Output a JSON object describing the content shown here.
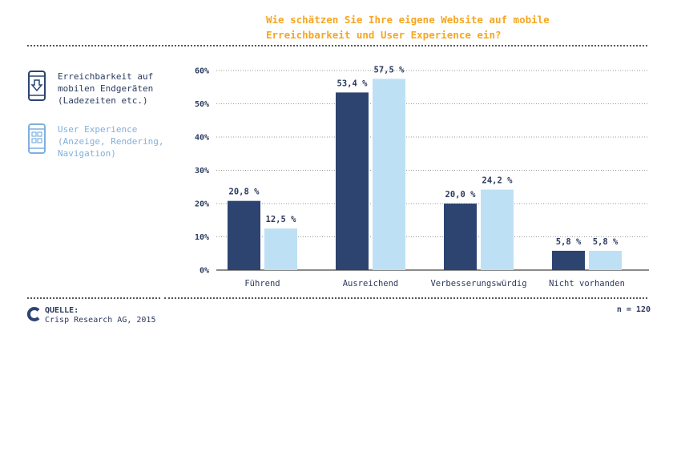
{
  "chart_data": {
    "type": "bar",
    "title_lines": [
      "Wie schätzen Sie Ihre eigene Website auf mobile",
      "Erreichbarkeit und User Experience ein?"
    ],
    "categories": [
      "Führend",
      "Ausreichend",
      "Verbesserungswürdig",
      "Nicht vorhanden"
    ],
    "series": [
      {
        "name": "Erreichbarkeit auf\nmobilen Endgeräten\n(Ladezeiten etc.)",
        "color": "#2d4471",
        "values": [
          20.8,
          53.4,
          20.0,
          5.8
        ],
        "labels": [
          "20,8 %",
          "53,4 %",
          "20,0 %",
          "5,8 %"
        ]
      },
      {
        "name": "User Experience\n(Anzeige, Rendering,\nNavigation)",
        "color": "#bee0f5",
        "values": [
          12.5,
          57.5,
          24.2,
          5.8
        ],
        "labels": [
          "12,5 %",
          "57,5 %",
          "24,2 %",
          "5,8 %"
        ]
      }
    ],
    "ylim": [
      0,
      60
    ],
    "yticks": [
      0,
      10,
      20,
      30,
      40,
      50,
      60
    ],
    "ytick_labels": [
      "0%",
      "10%",
      "20%",
      "30%",
      "40%",
      "50%",
      "60%"
    ],
    "grid": true,
    "legend_position": "left"
  },
  "legend_icons": [
    "phone-download-icon",
    "phone-grid-icon"
  ],
  "source": {
    "label": "QUELLE:",
    "text": "Crisp Research AG, 2015"
  },
  "sample_size": "n = 120",
  "colors": {
    "title": "#f5a623",
    "dark": "#2d4471",
    "light": "#bee0f5"
  }
}
